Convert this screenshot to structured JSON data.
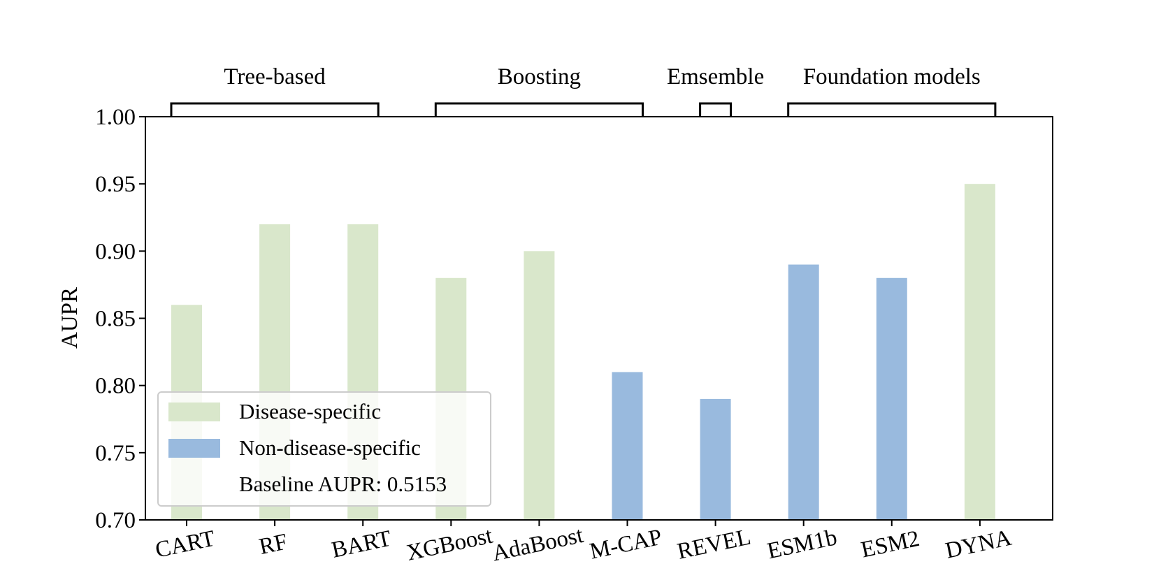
{
  "chart_data": {
    "type": "bar",
    "ylabel": "AUPR",
    "xlabel": "",
    "ylim": [
      0.7,
      1.0
    ],
    "yticks": [
      "0.70",
      "0.75",
      "0.80",
      "0.85",
      "0.90",
      "0.95",
      "1.00"
    ],
    "categories": [
      "CART",
      "RF",
      "BART",
      "XGBoost",
      "AdaBoost",
      "M-CAP",
      "REVEL",
      "ESM1b",
      "ESM2",
      "DYNA"
    ],
    "values": [
      0.86,
      0.92,
      0.92,
      0.88,
      0.9,
      0.81,
      0.79,
      0.89,
      0.88,
      0.95
    ],
    "bar_class": [
      "disease",
      "disease",
      "disease",
      "disease",
      "disease",
      "non",
      "non",
      "non",
      "non",
      "disease"
    ],
    "groups": [
      {
        "label": "Tree-based",
        "from": 0,
        "to": 2
      },
      {
        "label": "Boosting",
        "from": 3,
        "to": 5
      },
      {
        "label": "Emsemble",
        "from": 6,
        "to": 6
      },
      {
        "label": "Foundation models",
        "from": 7,
        "to": 9
      }
    ],
    "legend": {
      "placement": "lower-left",
      "items": [
        {
          "key": "disease",
          "label": "Disease-specific",
          "color": "#d9e7cb"
        },
        {
          "key": "non",
          "label": "Non-disease-specific",
          "color": "#99bade"
        }
      ],
      "note": "Baseline AUPR: 0.5153"
    },
    "grid": false
  }
}
